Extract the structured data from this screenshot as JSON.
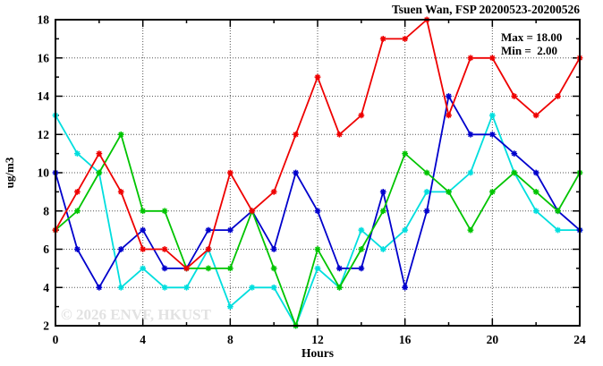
{
  "header": {
    "title": "Tsuen Wan, FSP 20200523-20200526"
  },
  "legend": {
    "max_label": "Max = 18.00",
    "min_label": "Min =  2.00"
  },
  "watermark": "© 2026 ENVF, HKUST",
  "chart_data": {
    "type": "line",
    "title": "Tsuen Wan, FSP 20200523-20200526",
    "xlabel": "Hours",
    "ylabel": "ug/m3",
    "xlim": [
      0,
      24
    ],
    "ylim": [
      2,
      18
    ],
    "x_major_ticks": [
      0,
      4,
      8,
      12,
      16,
      20,
      24
    ],
    "x_minor_ticks": [
      2,
      6,
      10,
      14,
      18,
      22
    ],
    "y_major_ticks": [
      2,
      4,
      6,
      8,
      10,
      12,
      14,
      16,
      18
    ],
    "y_minor_ticks": [
      3,
      5,
      7,
      9,
      11,
      13,
      15,
      17
    ],
    "grid": true,
    "legend_position": "top-right-inside",
    "annotations": [
      "Max = 18.00",
      "Min =  2.00"
    ],
    "x": [
      0,
      1,
      2,
      3,
      4,
      5,
      6,
      7,
      8,
      9,
      10,
      11,
      12,
      13,
      14,
      15,
      16,
      17,
      18,
      19,
      20,
      21,
      22,
      23,
      24
    ],
    "series": [
      {
        "name": "cyan-series",
        "color": "#00dede",
        "values": [
          13,
          11,
          10,
          4,
          5,
          4,
          4,
          6,
          3,
          4,
          4,
          2,
          5,
          4,
          7,
          6,
          7,
          9,
          9,
          10,
          13,
          10,
          8,
          7,
          7
        ]
      },
      {
        "name": "blue-series",
        "color": "#0000cc",
        "values": [
          10,
          6,
          4,
          6,
          7,
          5,
          5,
          7,
          7,
          8,
          6,
          10,
          8,
          5,
          5,
          9,
          4,
          8,
          14,
          12,
          12,
          11,
          10,
          8,
          7
        ]
      },
      {
        "name": "green-series",
        "color": "#00c400",
        "values": [
          7,
          8,
          10,
          12,
          8,
          8,
          5,
          5,
          5,
          8,
          5,
          2,
          6,
          4,
          6,
          8,
          11,
          10,
          9,
          7,
          9,
          10,
          9,
          8,
          10
        ]
      },
      {
        "name": "red-series",
        "color": "#ee0000",
        "values": [
          7,
          9,
          11,
          9,
          6,
          6,
          5,
          6,
          10,
          8,
          9,
          12,
          15,
          12,
          13,
          17,
          17,
          18,
          13,
          16,
          16,
          14,
          13,
          14,
          16
        ]
      }
    ]
  },
  "colors": {
    "axis": "#000000",
    "grid": "#555555",
    "background": "#ffffff",
    "watermark": "#e2e2e2"
  }
}
